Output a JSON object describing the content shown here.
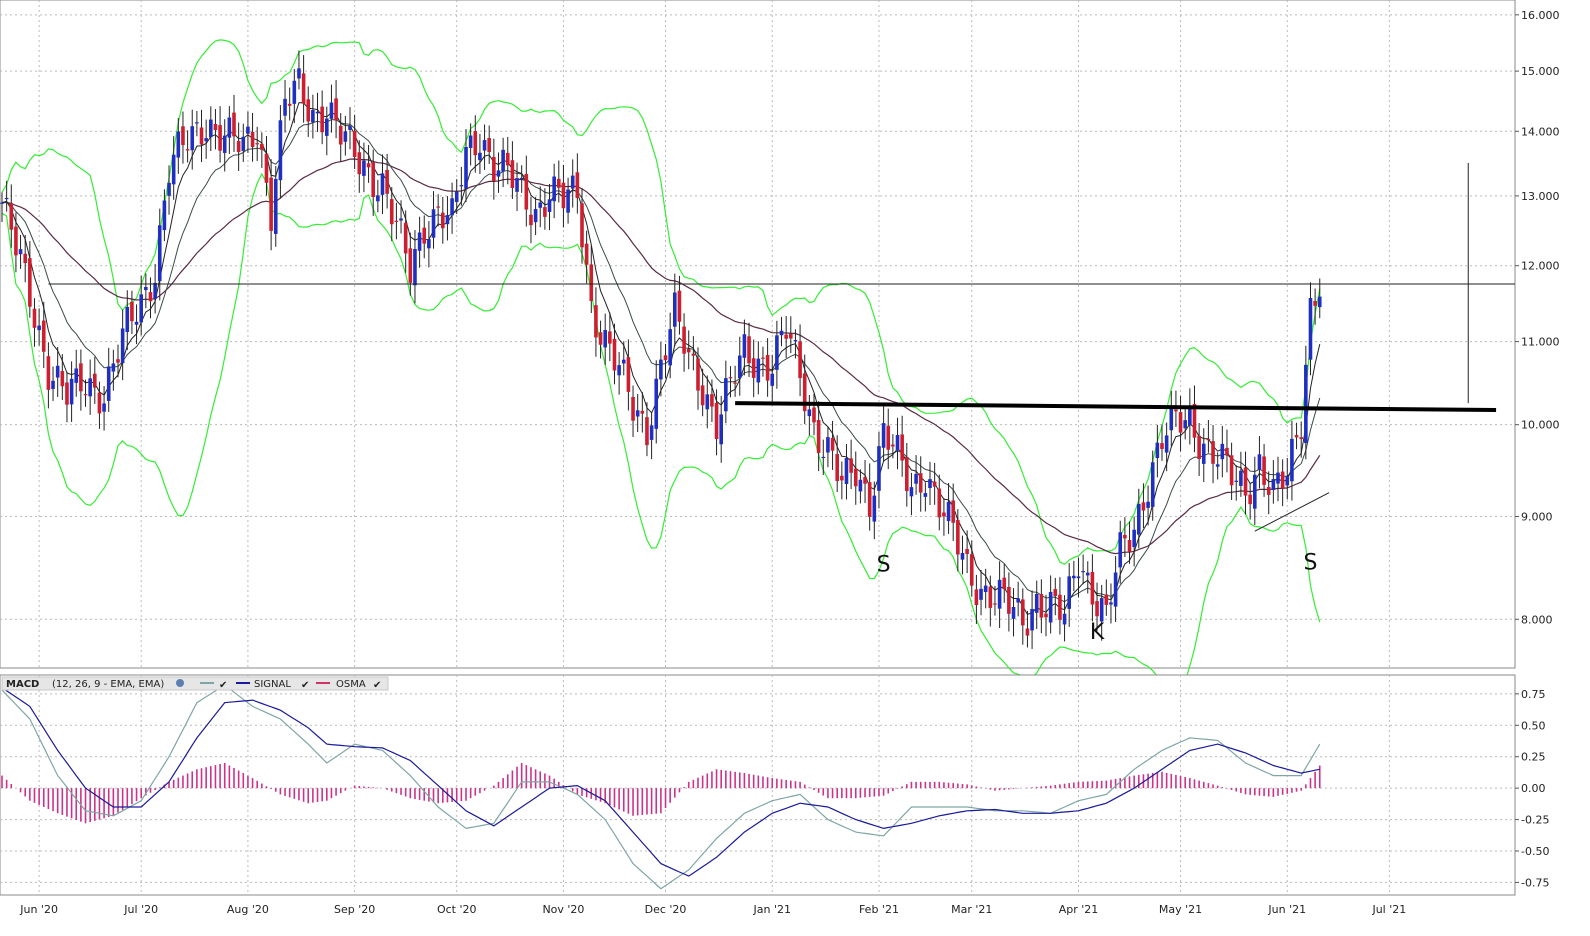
{
  "chart_data": [
    {
      "type": "candlestick",
      "title": "",
      "y_scale": "log",
      "ylim": [
        7.6,
        16.2
      ],
      "x_ticks": [
        "Jun '20",
        "Jul '20",
        "Aug '20",
        "Sep '20",
        "Oct '20",
        "Nov '20",
        "Dec '20",
        "Jan '21",
        "Feb '21",
        "Mar '21",
        "Apr '21",
        "May '21",
        "Jun '21",
        "Jul '21"
      ],
      "y_ticks": [
        8,
        9,
        10,
        11,
        12,
        13,
        14,
        15,
        16
      ],
      "y_tick_labels": [
        "8.000",
        "9.000",
        "10.000",
        "11.000",
        "12.000",
        "13.000",
        "14.000",
        "15.000",
        "16.000"
      ],
      "overlays": [
        "Bollinger Bands",
        "EMA short",
        "EMA medium",
        "EMA long"
      ],
      "price_path": [
        [
          0,
          12.9
        ],
        [
          3,
          12.2
        ],
        [
          6,
          11.6
        ],
        [
          10,
          10.7
        ],
        [
          14,
          10.3
        ],
        [
          18,
          10.5
        ],
        [
          22,
          10.4
        ],
        [
          26,
          11.0
        ],
        [
          30,
          11.5
        ],
        [
          33,
          12.0
        ],
        [
          36,
          13.4
        ],
        [
          40,
          13.8
        ],
        [
          44,
          14.2
        ],
        [
          48,
          13.9
        ],
        [
          52,
          13.7
        ],
        [
          55,
          14.1
        ],
        [
          58,
          12.8
        ],
        [
          61,
          14.4
        ],
        [
          64,
          14.7
        ],
        [
          67,
          14.3
        ],
        [
          70,
          14.4
        ],
        [
          73,
          13.9
        ],
        [
          76,
          13.6
        ],
        [
          79,
          13.4
        ],
        [
          82,
          13.2
        ],
        [
          85,
          12.5
        ],
        [
          88,
          11.9
        ],
        [
          91,
          12.6
        ],
        [
          94,
          12.8
        ],
        [
          97,
          12.6
        ],
        [
          100,
          13.6
        ],
        [
          103,
          14.0
        ],
        [
          106,
          13.5
        ],
        [
          109,
          13.3
        ],
        [
          112,
          13.0
        ],
        [
          115,
          12.8
        ],
        [
          118,
          13.1
        ],
        [
          121,
          12.9
        ],
        [
          124,
          13.0
        ],
        [
          127,
          11.5
        ],
        [
          130,
          11.0
        ],
        [
          133,
          10.6
        ],
        [
          136,
          10.2
        ],
        [
          139,
          10.0
        ],
        [
          142,
          10.7
        ],
        [
          145,
          11.3
        ],
        [
          148,
          10.8
        ],
        [
          151,
          10.5
        ],
        [
          154,
          10.0
        ],
        [
          157,
          10.4
        ],
        [
          160,
          10.9
        ],
        [
          163,
          10.8
        ],
        [
          166,
          10.7
        ],
        [
          169,
          11.1
        ],
        [
          172,
          10.6
        ],
        [
          175,
          10.0
        ],
        [
          178,
          9.7
        ],
        [
          181,
          9.3
        ],
        [
          184,
          9.5
        ],
        [
          187,
          9.2
        ],
        [
          190,
          9.9
        ],
        [
          193,
          9.6
        ],
        [
          196,
          9.3
        ],
        [
          199,
          9.5
        ],
        [
          202,
          9.1
        ],
        [
          205,
          8.8
        ],
        [
          208,
          8.5
        ],
        [
          211,
          8.3
        ],
        [
          214,
          8.2
        ],
        [
          217,
          8.1
        ],
        [
          220,
          8.0
        ],
        [
          223,
          8.2
        ],
        [
          226,
          8.1
        ],
        [
          229,
          8.0
        ],
        [
          232,
          8.6
        ],
        [
          235,
          8.3
        ],
        [
          238,
          8.0
        ],
        [
          241,
          8.6
        ],
        [
          244,
          8.9
        ],
        [
          247,
          9.4
        ],
        [
          250,
          9.8
        ],
        [
          253,
          10.0
        ],
        [
          256,
          10.1
        ],
        [
          259,
          9.8
        ],
        [
          262,
          9.6
        ],
        [
          265,
          9.4
        ],
        [
          268,
          9.3
        ],
        [
          271,
          9.6
        ],
        [
          274,
          9.2
        ],
        [
          277,
          9.4
        ],
        [
          280,
          10.1
        ],
        [
          282,
          11.5
        ],
        [
          284,
          11.8
        ]
      ],
      "horizontal_lines": [
        {
          "label": "resistance",
          "y": 11.75
        },
        {
          "label": "neckline",
          "y": 10.2
        }
      ],
      "trendline": {
        "from": [
          270,
          8.85
        ],
        "to": [
          286,
          9.25
        ]
      },
      "target_line": {
        "x": 316,
        "from_y": 10.25,
        "to_y": 13.5
      },
      "annotations": [
        {
          "text": "S",
          "x": 190,
          "y": 8.45
        },
        {
          "text": "K",
          "x": 236,
          "y": 7.82
        },
        {
          "text": "S",
          "x": 282,
          "y": 8.47
        }
      ]
    },
    {
      "type": "line",
      "title": "MACD",
      "params": "(12, 26, 9 - EMA, EMA)",
      "legend": [
        {
          "name": "",
          "color": "#7fa6a6"
        },
        {
          "name": "SIGNAL",
          "color": "#1a1a9c"
        },
        {
          "name": "OSMA",
          "color": "#cc3366"
        }
      ],
      "ylim": [
        -0.85,
        0.9
      ],
      "y_ticks": [
        0.75,
        0.5,
        0.25,
        0.0,
        -0.25,
        -0.5,
        -0.75
      ],
      "y_tick_labels": [
        "0.75",
        "0.50",
        "0.25",
        "0.00",
        "-0.25",
        "-0.50",
        "-0.75"
      ],
      "macd_path": [
        [
          0,
          0.78
        ],
        [
          6,
          0.55
        ],
        [
          12,
          0.1
        ],
        [
          18,
          -0.18
        ],
        [
          24,
          -0.22
        ],
        [
          30,
          -0.1
        ],
        [
          36,
          0.25
        ],
        [
          42,
          0.68
        ],
        [
          48,
          0.82
        ],
        [
          54,
          0.65
        ],
        [
          60,
          0.55
        ],
        [
          66,
          0.35
        ],
        [
          70,
          0.2
        ],
        [
          76,
          0.35
        ],
        [
          82,
          0.3
        ],
        [
          88,
          0.1
        ],
        [
          94,
          -0.15
        ],
        [
          100,
          -0.32
        ],
        [
          106,
          -0.28
        ],
        [
          112,
          0.05
        ],
        [
          118,
          0.05
        ],
        [
          124,
          -0.05
        ],
        [
          130,
          -0.25
        ],
        [
          136,
          -0.6
        ],
        [
          142,
          -0.8
        ],
        [
          148,
          -0.65
        ],
        [
          154,
          -0.4
        ],
        [
          160,
          -0.2
        ],
        [
          166,
          -0.1
        ],
        [
          172,
          -0.05
        ],
        [
          178,
          -0.25
        ],
        [
          184,
          -0.35
        ],
        [
          190,
          -0.38
        ],
        [
          196,
          -0.15
        ],
        [
          202,
          -0.15
        ],
        [
          208,
          -0.15
        ],
        [
          214,
          -0.18
        ],
        [
          220,
          -0.18
        ],
        [
          226,
          -0.2
        ],
        [
          232,
          -0.1
        ],
        [
          238,
          -0.05
        ],
        [
          244,
          0.15
        ],
        [
          250,
          0.3
        ],
        [
          256,
          0.4
        ],
        [
          262,
          0.38
        ],
        [
          268,
          0.2
        ],
        [
          274,
          0.1
        ],
        [
          280,
          0.1
        ],
        [
          284,
          0.35
        ]
      ],
      "signal_path": [
        [
          0,
          0.8
        ],
        [
          6,
          0.65
        ],
        [
          12,
          0.3
        ],
        [
          18,
          0.0
        ],
        [
          24,
          -0.15
        ],
        [
          30,
          -0.15
        ],
        [
          36,
          0.05
        ],
        [
          42,
          0.4
        ],
        [
          48,
          0.68
        ],
        [
          54,
          0.7
        ],
        [
          60,
          0.62
        ],
        [
          66,
          0.48
        ],
        [
          70,
          0.35
        ],
        [
          76,
          0.33
        ],
        [
          82,
          0.32
        ],
        [
          88,
          0.22
        ],
        [
          94,
          0.02
        ],
        [
          100,
          -0.18
        ],
        [
          106,
          -0.3
        ],
        [
          112,
          -0.15
        ],
        [
          118,
          0.0
        ],
        [
          124,
          0.02
        ],
        [
          130,
          -0.1
        ],
        [
          136,
          -0.35
        ],
        [
          142,
          -0.6
        ],
        [
          148,
          -0.7
        ],
        [
          154,
          -0.55
        ],
        [
          160,
          -0.35
        ],
        [
          166,
          -0.2
        ],
        [
          172,
          -0.12
        ],
        [
          178,
          -0.15
        ],
        [
          184,
          -0.25
        ],
        [
          190,
          -0.32
        ],
        [
          196,
          -0.28
        ],
        [
          202,
          -0.22
        ],
        [
          208,
          -0.18
        ],
        [
          214,
          -0.17
        ],
        [
          220,
          -0.2
        ],
        [
          226,
          -0.2
        ],
        [
          232,
          -0.18
        ],
        [
          238,
          -0.12
        ],
        [
          244,
          0.0
        ],
        [
          250,
          0.15
        ],
        [
          256,
          0.3
        ],
        [
          262,
          0.35
        ],
        [
          268,
          0.28
        ],
        [
          274,
          0.18
        ],
        [
          280,
          0.12
        ],
        [
          284,
          0.15
        ]
      ],
      "osma_path": [
        [
          0,
          0.1
        ],
        [
          6,
          -0.1
        ],
        [
          12,
          -0.2
        ],
        [
          18,
          -0.28
        ],
        [
          24,
          -0.22
        ],
        [
          30,
          -0.08
        ],
        [
          36,
          0.05
        ],
        [
          42,
          0.15
        ],
        [
          48,
          0.2
        ],
        [
          54,
          0.08
        ],
        [
          60,
          -0.05
        ],
        [
          66,
          -0.12
        ],
        [
          70,
          -0.1
        ],
        [
          76,
          0.02
        ],
        [
          82,
          0.0
        ],
        [
          88,
          -0.08
        ],
        [
          94,
          -0.12
        ],
        [
          100,
          -0.1
        ],
        [
          106,
          0.02
        ],
        [
          112,
          0.2
        ],
        [
          118,
          0.1
        ],
        [
          124,
          -0.05
        ],
        [
          130,
          -0.12
        ],
        [
          136,
          -0.22
        ],
        [
          142,
          -0.2
        ],
        [
          148,
          0.05
        ],
        [
          154,
          0.15
        ],
        [
          160,
          0.12
        ],
        [
          166,
          0.08
        ],
        [
          172,
          0.05
        ],
        [
          178,
          -0.08
        ],
        [
          184,
          -0.08
        ],
        [
          190,
          -0.06
        ],
        [
          196,
          0.05
        ],
        [
          202,
          0.05
        ],
        [
          208,
          0.03
        ],
        [
          214,
          -0.02
        ],
        [
          220,
          0.0
        ],
        [
          226,
          0.02
        ],
        [
          232,
          0.05
        ],
        [
          238,
          0.06
        ],
        [
          244,
          0.1
        ],
        [
          250,
          0.13
        ],
        [
          256,
          0.08
        ],
        [
          262,
          0.02
        ],
        [
          268,
          -0.05
        ],
        [
          274,
          -0.07
        ],
        [
          280,
          -0.02
        ],
        [
          284,
          0.18
        ]
      ]
    }
  ],
  "colors": {
    "bull": "#1f2fbf",
    "bear": "#cc1f2f",
    "band": "#33ee33",
    "ema_short": "#222222",
    "ema_mid": "#3a4a4a",
    "ema_long": "#5a2a45",
    "grid": "#bbbbbb"
  }
}
